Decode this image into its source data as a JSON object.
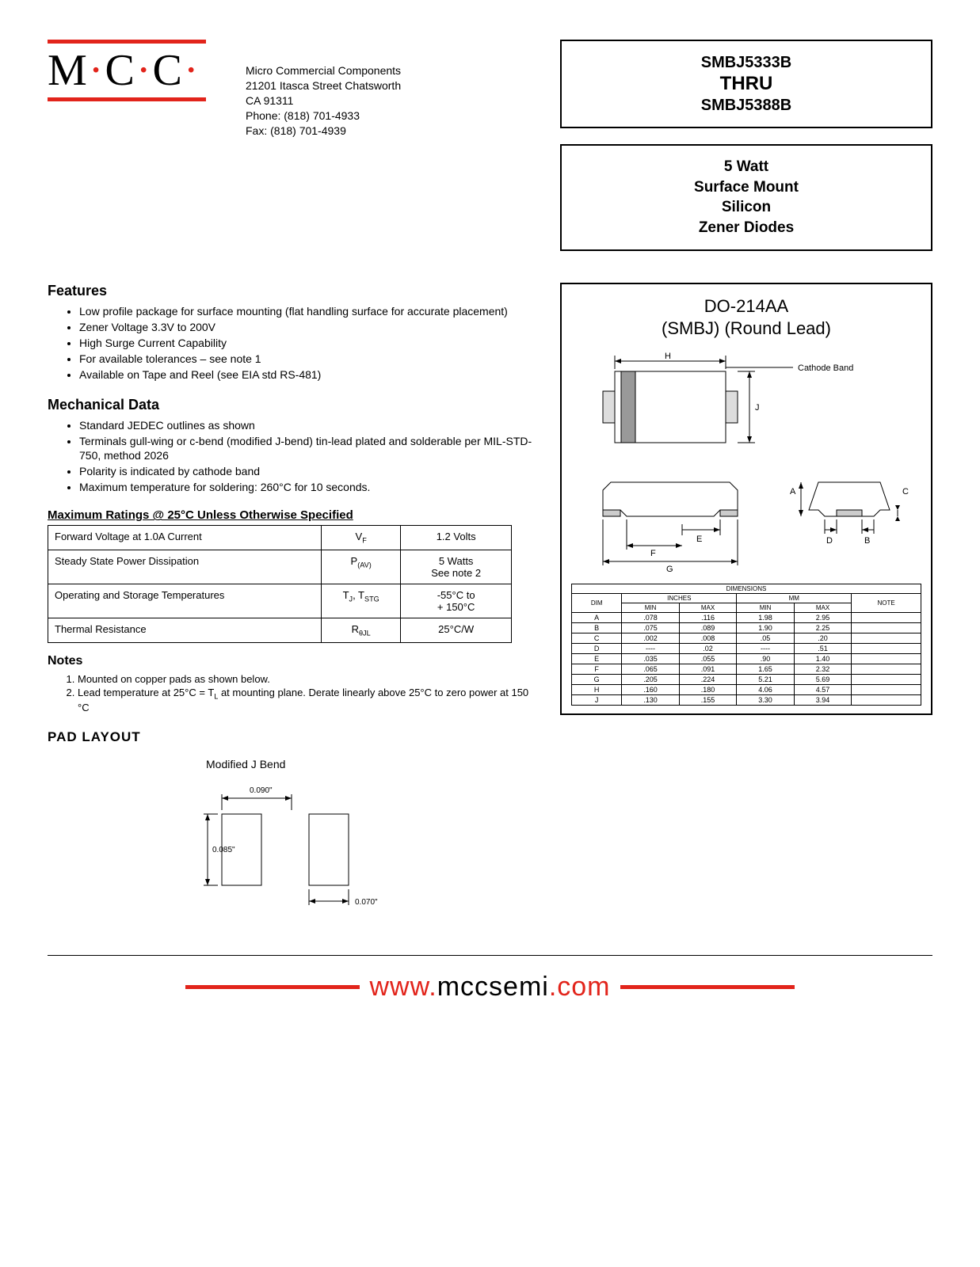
{
  "logo": {
    "text": "M·C·C·"
  },
  "company": {
    "name": "Micro Commercial Components",
    "addr1": "21201 Itasca Street Chatsworth",
    "addr2": "CA 91311",
    "phone": "Phone: (818) 701-4933",
    "fax": "Fax:     (818) 701-4939"
  },
  "partbox": {
    "top": "SMBJ5333B",
    "mid": "THRU",
    "bot": "SMBJ5388B"
  },
  "descbox": {
    "l1": "5 Watt",
    "l2": "Surface Mount",
    "l3": "Silicon",
    "l4": "Zener Diodes"
  },
  "features": {
    "title": "Features",
    "items": [
      "Low profile package for surface mounting (flat handling surface for accurate placement)",
      "Zener Voltage 3.3V to 200V",
      "High Surge Current Capability",
      "For available tolerances – see note 1",
      "Available on Tape and Reel (see EIA std RS-481)"
    ]
  },
  "mech": {
    "title": "Mechanical Data",
    "items": [
      "Standard JEDEC outlines as shown",
      "Terminals gull-wing or c-bend (modified J-bend) tin-lead plated and solderable per MIL-STD-750, method 2026",
      "Polarity is indicated by cathode band",
      "Maximum temperature for soldering: 260°C for 10 seconds."
    ]
  },
  "ratings": {
    "title": "Maximum Ratings @ 25°C Unless Otherwise Specified",
    "rows": [
      {
        "p": "Forward Voltage at 1.0A Current",
        "s": "V<sub>F</sub>",
        "v": "1.2 Volts"
      },
      {
        "p": "Steady State Power Dissipation",
        "s": "P<sub>(AV)</sub>",
        "v": "5 Watts<br>See note 2"
      },
      {
        "p": "Operating and Storage Temperatures",
        "s": "T<sub>J</sub>, T<sub>STG</sub>",
        "v": "-55°C to<br>+ 150°C"
      },
      {
        "p": "Thermal Resistance",
        "s": "R<sub>θJL</sub>",
        "v": "25°C/W"
      }
    ]
  },
  "notes": {
    "title": "Notes",
    "items": [
      "Mounted on copper pads as shown below.",
      "Lead temperature at 25°C = T<sub>L</sub> at mounting plane.  Derate linearly above 25°C to zero power at 150 °C"
    ]
  },
  "pad": {
    "title": "PAD LAYOUT",
    "label": "Modified J Bend",
    "dimA": "0.090\"",
    "dimB": "0.085\"",
    "dimC": "0.070\""
  },
  "pkg": {
    "t1": "DO-214AA",
    "t2": "(SMBJ) (Round Lead)",
    "cathode": "Cathode Band",
    "dims_title": "DIMENSIONS",
    "hdr": {
      "dim": "DIM",
      "in": "INCHES",
      "mm": "MM",
      "min": "MIN",
      "max": "MAX",
      "note": "NOTE"
    },
    "rows": [
      {
        "d": "A",
        "imin": ".078",
        "imax": ".116",
        "mmin": "1.98",
        "mmax": "2.95",
        "n": ""
      },
      {
        "d": "B",
        "imin": ".075",
        "imax": ".089",
        "mmin": "1.90",
        "mmax": "2.25",
        "n": ""
      },
      {
        "d": "C",
        "imin": ".002",
        "imax": ".008",
        "mmin": ".05",
        "mmax": ".20",
        "n": ""
      },
      {
        "d": "D",
        "imin": "----",
        "imax": ".02",
        "mmin": "----",
        "mmax": ".51",
        "n": ""
      },
      {
        "d": "E",
        "imin": ".035",
        "imax": ".055",
        "mmin": ".90",
        "mmax": "1.40",
        "n": ""
      },
      {
        "d": "F",
        "imin": ".065",
        "imax": ".091",
        "mmin": "1.65",
        "mmax": "2.32",
        "n": ""
      },
      {
        "d": "G",
        "imin": ".205",
        "imax": ".224",
        "mmin": "5.21",
        "mmax": "5.69",
        "n": ""
      },
      {
        "d": "H",
        "imin": ".160",
        "imax": ".180",
        "mmin": "4.06",
        "mmax": "4.57",
        "n": ""
      },
      {
        "d": "J",
        "imin": ".130",
        "imax": ".155",
        "mmin": "3.30",
        "mmax": "3.94",
        "n": ""
      }
    ]
  },
  "footer": {
    "url_www": "www.",
    "url_mid": "mccsemi",
    "url_com": ".com"
  }
}
